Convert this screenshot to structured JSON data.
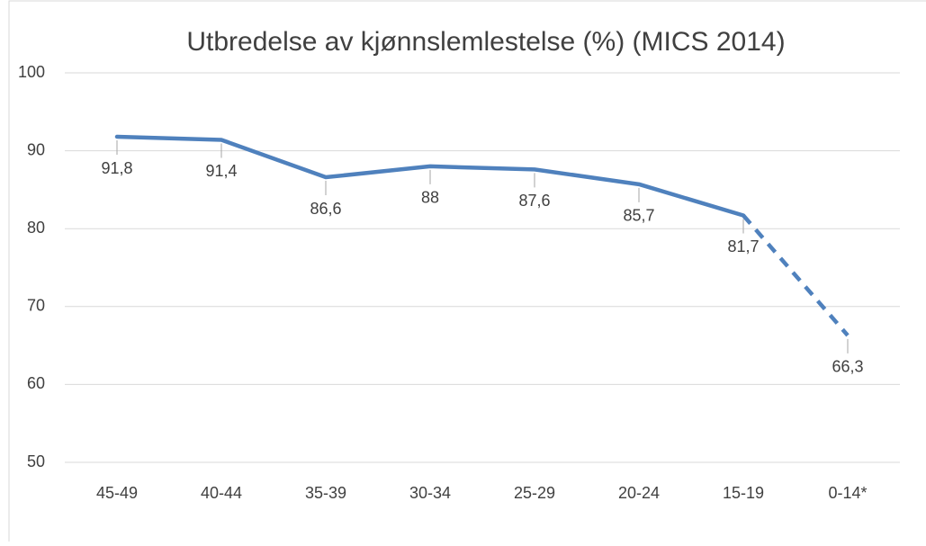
{
  "chart_data": {
    "type": "line",
    "title": "Utbredelse av kjønnslemlestelse (%) (MICS 2014)",
    "categories": [
      "45-49",
      "40-44",
      "35-39",
      "30-34",
      "25-29",
      "20-24",
      "15-19",
      "0-14*"
    ],
    "series": [
      {
        "name": "Utbredelse",
        "color": "#4f81bd",
        "values": [
          91.8,
          91.4,
          86.6,
          88,
          87.6,
          85.7,
          81.7,
          66.3
        ],
        "value_labels": [
          "91,8",
          "91,4",
          "86,6",
          "88",
          "87,6",
          "85,7",
          "81,7",
          "66,3"
        ]
      }
    ],
    "dashed_last_segment": true,
    "ylim": [
      50,
      100
    ],
    "yticks": [
      50,
      60,
      70,
      80,
      90,
      100
    ],
    "grid": true
  }
}
